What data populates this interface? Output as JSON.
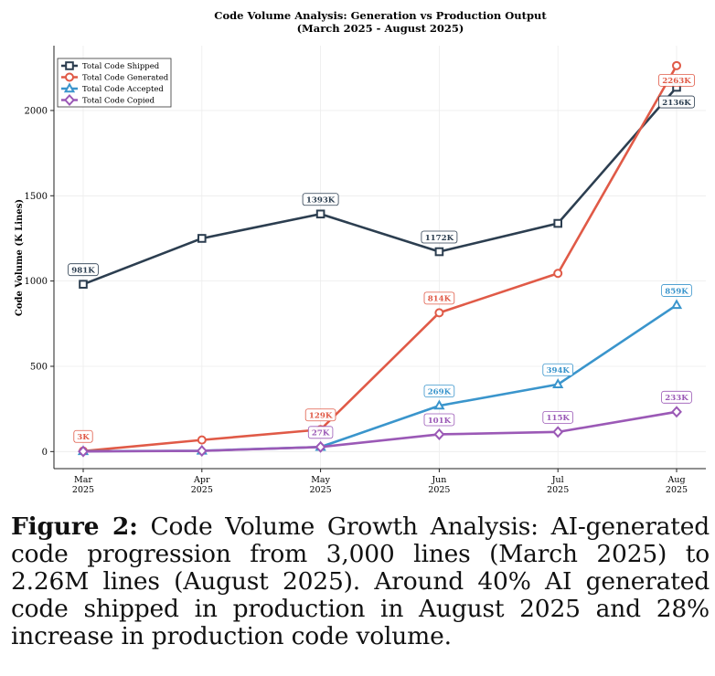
{
  "chart_data": {
    "type": "line",
    "title": "Code Volume Analysis: Generation vs Production Output",
    "subtitle": "(March 2025 - August 2025)",
    "xlabel": "",
    "ylabel": "Code Volume (K Lines)",
    "categories": [
      "Mar\n2025",
      "Apr\n2025",
      "May\n2025",
      "Jun\n2025",
      "Jul\n2025",
      "Aug\n2025"
    ],
    "yticks": [
      0,
      500,
      1000,
      1500,
      2000
    ],
    "ylim": [
      -100,
      2380
    ],
    "grid": true,
    "legend_position": "top-left",
    "series": [
      {
        "name": "Total Code Shipped",
        "color": "#2c3e50",
        "marker": "square",
        "values": [
          981,
          1250,
          1393,
          1172,
          1338,
          2136
        ],
        "labels": [
          "981K",
          null,
          "1393K",
          "1172K",
          null,
          "2136K"
        ]
      },
      {
        "name": "Total Code Generated",
        "color": "#e05a47",
        "marker": "circle",
        "values": [
          3,
          68,
          129,
          814,
          1045,
          2263
        ],
        "labels": [
          "3K",
          null,
          "129K",
          "814K",
          null,
          "2263K"
        ]
      },
      {
        "name": "Total Code Accepted",
        "color": "#3a95cc",
        "marker": "triangle",
        "values": [
          2,
          5,
          27,
          269,
          394,
          859
        ],
        "labels": [
          null,
          null,
          null,
          "269K",
          "394K",
          "859K"
        ]
      },
      {
        "name": "Total Code Copied",
        "color": "#9b59b6",
        "marker": "diamond",
        "values": [
          1,
          4,
          27,
          101,
          115,
          233
        ],
        "labels": [
          null,
          null,
          "27K",
          "101K",
          "115K",
          "233K"
        ]
      }
    ]
  },
  "caption": {
    "label": "Figure 2:",
    "text": "Code Volume Growth Analysis: AI-generated code progression from 3,000 lines (March 2025) to 2.26M lines (August 2025).  Around 40% AI generated code shipped in production in August 2025 and 28% increase in production code volume."
  }
}
